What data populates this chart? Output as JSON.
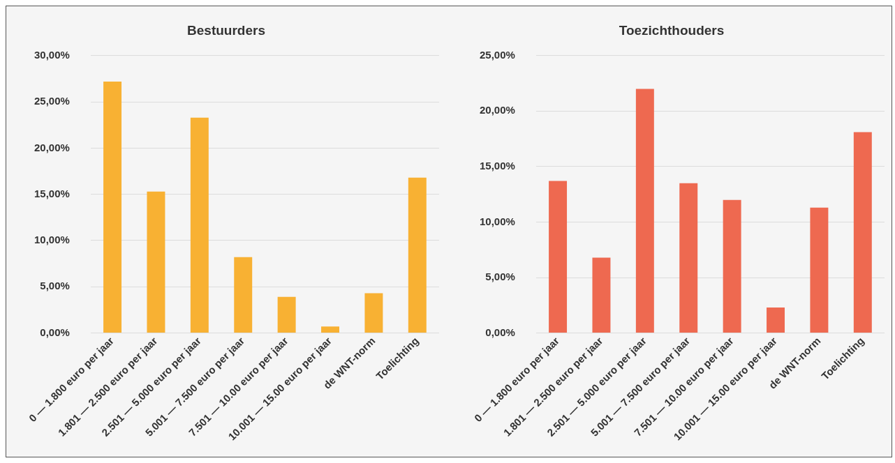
{
  "chart_data": [
    {
      "type": "bar",
      "title": "Bestuurders",
      "categories": [
        "0 — 1.800 euro per jaar",
        "1.801 — 2.500 euro per jaar",
        "2.501 — 5.000 euro per jaar",
        "5.001 — 7.500 euro per jaar",
        "7.501 — 10.00 euro per jaar",
        "10.001 — 15.00 euro per jaar",
        "de WNT-norm",
        "Toelichting"
      ],
      "series": [
        {
          "color": "#f8b133",
          "values": [
            27.2,
            15.3,
            23.3,
            8.2,
            3.9,
            0.7,
            4.3,
            16.8
          ]
        }
      ],
      "ylim": [
        0,
        30
      ],
      "yticks": [
        {
          "value": 0,
          "label": "0,00%"
        },
        {
          "value": 5,
          "label": "5,00%"
        },
        {
          "value": 10,
          "label": "10,00%"
        },
        {
          "value": 15,
          "label": "15,00%"
        },
        {
          "value": 20,
          "label": "20,00%"
        },
        {
          "value": 25,
          "label": "25,00%"
        },
        {
          "value": 30,
          "label": "30,00%"
        }
      ],
      "grid": "y",
      "legend": false
    },
    {
      "type": "bar",
      "title": "Toezichthouders",
      "categories": [
        "0 — 1.800 euro per jaar",
        "1.801 — 2.500 euro per jaar",
        "2.501 — 5.000 euro per jaar",
        "5.001 — 7.500 euro per jaar",
        "7.501 — 10.00 euro per jaar",
        "10.001 — 15.00 euro per jaar",
        "de WNT-norm",
        "Toelichting"
      ],
      "series": [
        {
          "color": "#ee6950",
          "values": [
            13.7,
            6.8,
            22.0,
            13.5,
            12.0,
            2.3,
            11.3,
            18.1
          ]
        }
      ],
      "ylim": [
        0,
        25
      ],
      "yticks": [
        {
          "value": 0,
          "label": "0,00%"
        },
        {
          "value": 5,
          "label": "5,00%"
        },
        {
          "value": 10,
          "label": "10,00%"
        },
        {
          "value": 15,
          "label": "15,00%"
        },
        {
          "value": 20,
          "label": "20,00%"
        },
        {
          "value": 25,
          "label": "25,00%"
        }
      ],
      "grid": "y",
      "legend": false
    }
  ]
}
